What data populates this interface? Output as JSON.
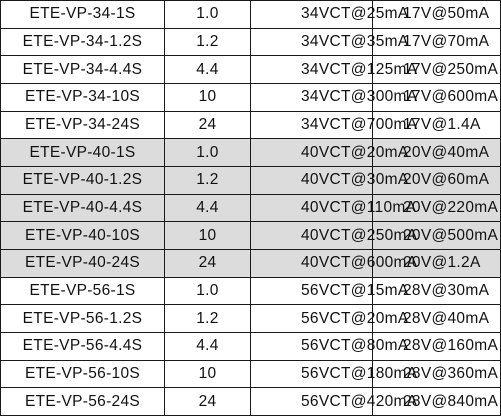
{
  "table": {
    "rows": [
      {
        "model": "ETE-VP-34-1S",
        "va": "1.0",
        "series": "34VCT@25mA",
        "parallel": "17V@50mA",
        "shaded": false
      },
      {
        "model": "ETE-VP-34-1.2S",
        "va": "1.2",
        "series": "34VCT@35mA",
        "parallel": "17V@70mA",
        "shaded": false
      },
      {
        "model": "ETE-VP-34-4.4S",
        "va": "4.4",
        "series": "34VCT@125mA",
        "parallel": "17V@250mA",
        "shaded": false
      },
      {
        "model": "ETE-VP-34-10S",
        "va": "10",
        "series": "34VCT@300mA",
        "parallel": "17V@600mA",
        "shaded": false
      },
      {
        "model": "ETE-VP-34-24S",
        "va": "24",
        "series": "34VCT@700mA",
        "parallel": "17V@1.4A",
        "shaded": false
      },
      {
        "model": "ETE-VP-40-1S",
        "va": "1.0",
        "series": "40VCT@20mA",
        "parallel": "20V@40mA",
        "shaded": true
      },
      {
        "model": "ETE-VP-40-1.2S",
        "va": "1.2",
        "series": "40VCT@30mA",
        "parallel": "20V@60mA",
        "shaded": true
      },
      {
        "model": "ETE-VP-40-4.4S",
        "va": "4.4",
        "series": "40VCT@110mA",
        "parallel": "20V@220mA",
        "shaded": true
      },
      {
        "model": "ETE-VP-40-10S",
        "va": "10",
        "series": "40VCT@250mA",
        "parallel": "20V@500mA",
        "shaded": true
      },
      {
        "model": "ETE-VP-40-24S",
        "va": "24",
        "series": "40VCT@600mA",
        "parallel": "20V@1.2A",
        "shaded": true
      },
      {
        "model": "ETE-VP-56-1S",
        "va": "1.0",
        "series": "56VCT@15mA",
        "parallel": "28V@30mA",
        "shaded": false
      },
      {
        "model": "ETE-VP-56-1.2S",
        "va": "1.2",
        "series": "56VCT@20mA",
        "parallel": "28V@40mA",
        "shaded": false
      },
      {
        "model": "ETE-VP-56-4.4S",
        "va": "4.4",
        "series": "56VCT@80mA",
        "parallel": "28V@160mA",
        "shaded": false
      },
      {
        "model": "ETE-VP-56-10S",
        "va": "10",
        "series": "56VCT@180mA",
        "parallel": "28V@360mA",
        "shaded": false
      },
      {
        "model": "ETE-VP-56-24S",
        "va": "24",
        "series": "56VCT@420mA",
        "parallel": "28V@840mA",
        "shaded": false
      }
    ]
  }
}
